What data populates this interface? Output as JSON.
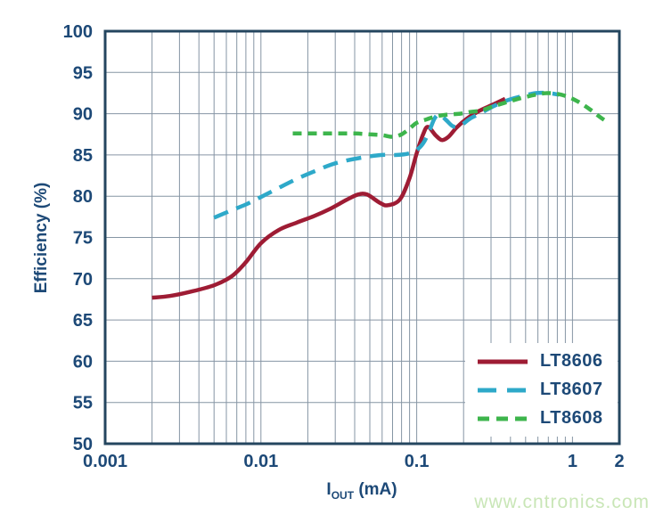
{
  "watermark": {
    "text": "www.cntronics.com",
    "color": "#c9e6b7"
  },
  "chart_data": {
    "type": "line",
    "title": "",
    "ylabel": "Efficiency (%)",
    "xlabel": {
      "symbol": "I",
      "subscript": "OUT",
      "unit": "(mA)"
    },
    "x_scale": "log",
    "xlim": [
      0.001,
      2
    ],
    "ylim": [
      50,
      100
    ],
    "grid": "log minor + major verticals, 5% horizontals, full frame",
    "legend_position": "inside bottom-right, white background",
    "x_ticks": [
      {
        "value": 0.001,
        "label": "0.001"
      },
      {
        "value": 0.01,
        "label": "0.01"
      },
      {
        "value": 0.1,
        "label": "0.1"
      },
      {
        "value": 1,
        "label": "1"
      },
      {
        "value": 2,
        "label": "2"
      }
    ],
    "y_ticks": [
      {
        "value": 50,
        "label": "50"
      },
      {
        "value": 55,
        "label": "55"
      },
      {
        "value": 60,
        "label": "60"
      },
      {
        "value": 65,
        "label": "65"
      },
      {
        "value": 70,
        "label": "70"
      },
      {
        "value": 75,
        "label": "75"
      },
      {
        "value": 80,
        "label": "80"
      },
      {
        "value": 85,
        "label": "85"
      },
      {
        "value": 90,
        "label": "90"
      },
      {
        "value": 95,
        "label": "95"
      },
      {
        "value": 100,
        "label": "100"
      }
    ],
    "colors": {
      "axis_text": "#1d4977",
      "frame": "#24465f",
      "gridline": "#8695a4"
    },
    "series": [
      {
        "name": "LT8606",
        "color": "#9e1c34",
        "line_style": "solid",
        "points": [
          [
            0.002,
            67.7
          ],
          [
            0.0026,
            67.9
          ],
          [
            0.0035,
            68.4
          ],
          [
            0.005,
            69.2
          ],
          [
            0.0065,
            70.3
          ],
          [
            0.008,
            72.0
          ],
          [
            0.01,
            74.3
          ],
          [
            0.013,
            75.9
          ],
          [
            0.017,
            76.8
          ],
          [
            0.022,
            77.6
          ],
          [
            0.028,
            78.5
          ],
          [
            0.035,
            79.5
          ],
          [
            0.042,
            80.2
          ],
          [
            0.048,
            80.2
          ],
          [
            0.058,
            79.2
          ],
          [
            0.065,
            78.9
          ],
          [
            0.078,
            79.6
          ],
          [
            0.09,
            82.2
          ],
          [
            0.1,
            85.2
          ],
          [
            0.11,
            87.5
          ],
          [
            0.118,
            88.4
          ],
          [
            0.132,
            87.4
          ],
          [
            0.145,
            86.8
          ],
          [
            0.16,
            87.2
          ],
          [
            0.18,
            88.3
          ],
          [
            0.21,
            89.4
          ],
          [
            0.25,
            90.3
          ],
          [
            0.3,
            91.0
          ],
          [
            0.37,
            91.8
          ]
        ]
      },
      {
        "name": "LT8607",
        "color": "#2ea9c9",
        "line_style": "long-dash",
        "points": [
          [
            0.005,
            77.4
          ],
          [
            0.0065,
            78.3
          ],
          [
            0.008,
            79.0
          ],
          [
            0.01,
            79.9
          ],
          [
            0.013,
            81.0
          ],
          [
            0.017,
            82.1
          ],
          [
            0.022,
            83.0
          ],
          [
            0.028,
            83.8
          ],
          [
            0.035,
            84.3
          ],
          [
            0.045,
            84.7
          ],
          [
            0.06,
            85.0
          ],
          [
            0.075,
            85.0
          ],
          [
            0.09,
            85.2
          ],
          [
            0.1,
            85.6
          ],
          [
            0.11,
            86.4
          ],
          [
            0.12,
            87.8
          ],
          [
            0.13,
            89.4
          ],
          [
            0.14,
            89.9
          ],
          [
            0.155,
            89.2
          ],
          [
            0.17,
            88.5
          ],
          [
            0.185,
            88.4
          ],
          [
            0.2,
            88.8
          ],
          [
            0.22,
            89.4
          ],
          [
            0.26,
            90.1
          ],
          [
            0.31,
            90.9
          ],
          [
            0.38,
            91.6
          ],
          [
            0.47,
            92.1
          ],
          [
            0.58,
            92.5
          ],
          [
            0.7,
            92.5
          ],
          [
            0.82,
            92.3
          ]
        ]
      },
      {
        "name": "LT8608",
        "color": "#3db54c",
        "line_style": "short-dash",
        "points": [
          [
            0.016,
            87.6
          ],
          [
            0.022,
            87.6
          ],
          [
            0.03,
            87.6
          ],
          [
            0.04,
            87.6
          ],
          [
            0.05,
            87.5
          ],
          [
            0.06,
            87.4
          ],
          [
            0.07,
            87.2
          ],
          [
            0.08,
            87.5
          ],
          [
            0.09,
            88.2
          ],
          [
            0.1,
            88.9
          ],
          [
            0.115,
            89.3
          ],
          [
            0.135,
            89.7
          ],
          [
            0.16,
            89.9
          ],
          [
            0.19,
            90.0
          ],
          [
            0.22,
            90.2
          ],
          [
            0.26,
            90.4
          ],
          [
            0.31,
            90.9
          ],
          [
            0.38,
            91.4
          ],
          [
            0.47,
            91.9
          ],
          [
            0.58,
            92.3
          ],
          [
            0.68,
            92.5
          ],
          [
            0.8,
            92.4
          ],
          [
            0.95,
            92.0
          ],
          [
            1.1,
            91.4
          ],
          [
            1.3,
            90.5
          ],
          [
            1.5,
            89.6
          ],
          [
            1.7,
            88.9
          ]
        ]
      }
    ]
  }
}
